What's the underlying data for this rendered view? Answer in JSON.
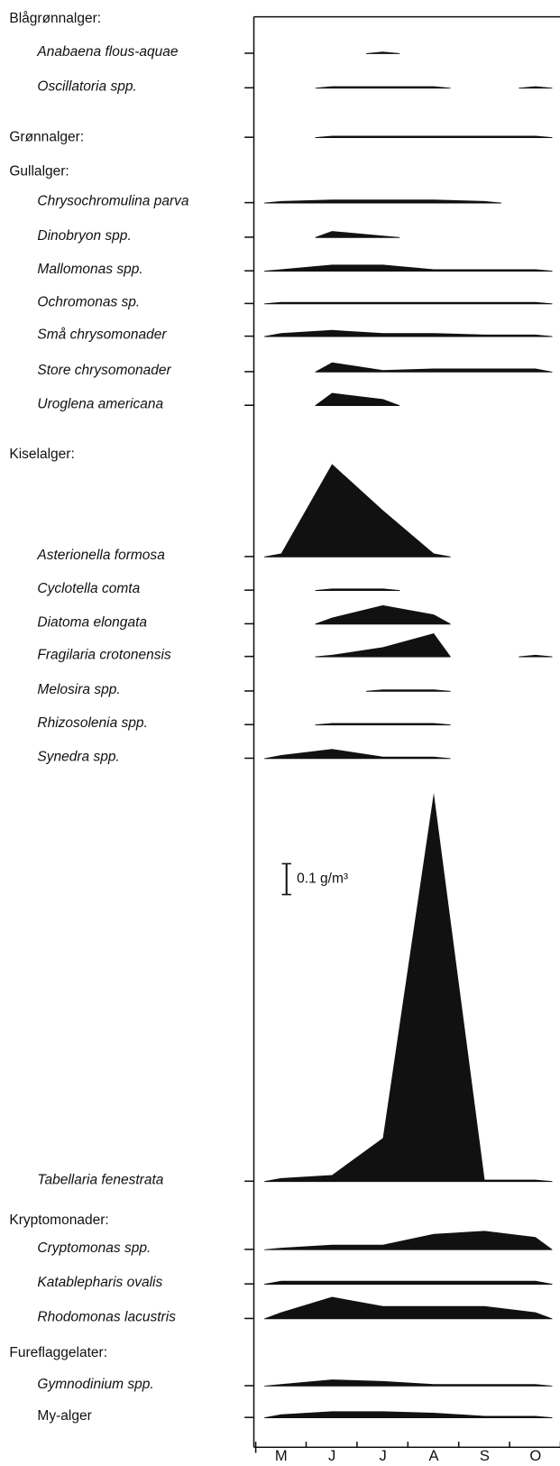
{
  "chart_data": {
    "type": "kite",
    "categories": [
      "M",
      "J",
      "J",
      "A",
      "S",
      "O"
    ],
    "color": "#111111",
    "scale_bar": {
      "value": 0.1,
      "label": "0.1 g/m³"
    },
    "groups": [
      {
        "name": "Blågrønnalger:",
        "series": [
          {
            "name": "Anabaena flous-aquae",
            "values": [
              null,
              null,
              0.005,
              null,
              null,
              null
            ]
          },
          {
            "name": "Oscillatoria spp.",
            "values": [
              null,
              0.005,
              0.005,
              0.005,
              null,
              0.005
            ]
          }
        ]
      },
      {
        "name": "Grønnalger:",
        "values": [
          null,
          0.005,
          0.005,
          0.005,
          0.005,
          0.005
        ],
        "series": []
      },
      {
        "name": "Gullalger:",
        "series": [
          {
            "name": "Chrysochromulina parva",
            "values": [
              0.005,
              0.01,
              0.01,
              0.01,
              0.005,
              null
            ]
          },
          {
            "name": "Dinobryon spp.",
            "values": [
              null,
              0.02,
              0.005,
              null,
              null,
              null
            ]
          },
          {
            "name": "Mallomonas spp.",
            "values": [
              0.005,
              0.02,
              0.02,
              0.005,
              0.005,
              0.005
            ]
          },
          {
            "name": "Ochromonas sp.",
            "values": [
              0.005,
              0.005,
              0.005,
              0.005,
              0.005,
              0.005
            ]
          },
          {
            "name": "Små chrysomonader",
            "values": [
              0.01,
              0.02,
              0.01,
              0.01,
              0.005,
              0.005
            ]
          },
          {
            "name": "Store chrysomonader",
            "values": [
              null,
              0.03,
              0.005,
              0.01,
              0.01,
              0.01
            ]
          },
          {
            "name": "Uroglena americana",
            "values": [
              null,
              0.04,
              0.02,
              null,
              null,
              null
            ]
          }
        ]
      },
      {
        "name": "Kiselalger:",
        "series": [
          {
            "name": "Asterionella formosa",
            "values": [
              0.01,
              0.3,
              0.15,
              0.01,
              null,
              null
            ]
          },
          {
            "name": "Cyclotella comta",
            "values": [
              null,
              0.005,
              0.005,
              null,
              null,
              null
            ]
          },
          {
            "name": "Diatoma elongata",
            "values": [
              null,
              0.02,
              0.06,
              0.03,
              null,
              null
            ]
          },
          {
            "name": "Fragilaria crotonensis",
            "values": [
              null,
              0.005,
              0.03,
              0.075,
              null,
              0.005
            ]
          },
          {
            "name": "Melosira spp.",
            "values": [
              null,
              null,
              0.005,
              0.005,
              null,
              null
            ]
          },
          {
            "name": "Rhizosolenia spp.",
            "values": [
              null,
              0.005,
              0.005,
              0.005,
              null,
              null
            ]
          },
          {
            "name": "Synedra spp.",
            "values": [
              0.01,
              0.03,
              0.005,
              0.005,
              null,
              null
            ]
          },
          {
            "name": "Tabellaria fenestrata",
            "values": [
              0.01,
              0.02,
              0.14,
              1.26,
              0.005,
              0.005
            ]
          }
        ]
      },
      {
        "name": "Kryptomonader:",
        "series": [
          {
            "name": "Cryptomonas spp.",
            "values": [
              0.005,
              0.015,
              0.015,
              0.05,
              0.06,
              0.04
            ]
          },
          {
            "name": "Katablepharis ovalis",
            "values": [
              0.01,
              0.01,
              0.01,
              0.01,
              0.01,
              0.01
            ]
          },
          {
            "name": "Rhodomonas lacustris",
            "values": [
              0.02,
              0.07,
              0.04,
              0.04,
              0.04,
              0.02
            ]
          }
        ]
      },
      {
        "name": "Fureflaggelater:",
        "series": [
          {
            "name": "Gymnodinium spp.",
            "values": [
              0.005,
              0.02,
              0.015,
              0.005,
              0.005,
              0.005
            ]
          },
          {
            "name": "My-alger",
            "italic": false,
            "values": [
              0.01,
              0.02,
              0.02,
              0.015,
              0.005,
              0.005
            ]
          }
        ]
      }
    ]
  }
}
